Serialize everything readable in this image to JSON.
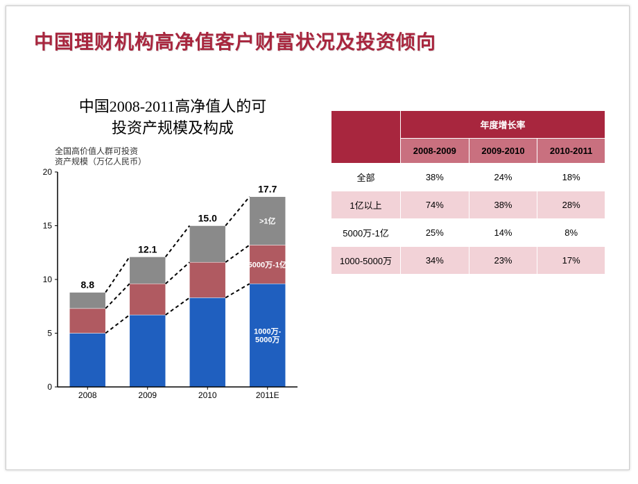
{
  "title": "中国理财机构高净值客户财富状况及投资倾向",
  "title_color": "#a8263e",
  "chart": {
    "type": "stacked-bar",
    "title_line1": "中国2008-2011高净值人的可",
    "title_line2": "投资产规模及构成",
    "note": "全国高价值人群可投资资产规模（万亿人民币）",
    "categories": [
      "2008",
      "2009",
      "2010",
      "2011E"
    ],
    "totals": [
      "8.8",
      "12.1",
      "15.0",
      "17.7"
    ],
    "ylim": [
      0,
      20
    ],
    "yticks": [
      0,
      5,
      10,
      15,
      20
    ],
    "series": [
      {
        "name": "1000万-5000万",
        "label": "1000万-\n5000万",
        "color": "#1f5fbf",
        "values": [
          5.0,
          6.7,
          8.3,
          9.6
        ]
      },
      {
        "name": "5000万-1亿",
        "label": "5000万-1亿",
        "color": "#b05a61",
        "values": [
          2.3,
          2.9,
          3.3,
          3.6
        ]
      },
      {
        "name": ">1亿",
        "label": ">1亿",
        "color": "#8a8a8a",
        "values": [
          1.5,
          2.5,
          3.4,
          4.5
        ]
      }
    ],
    "bar_width": 0.6,
    "axis_color": "#000000",
    "tick_color": "#666666",
    "connector_dash": "5,4",
    "label_fontsize": 12,
    "total_fontsize": 14,
    "plot_bg": "#ffffff"
  },
  "table": {
    "header_main": "年度增长率",
    "header_cols": [
      "2008-2009",
      "2009-2010",
      "2010-2011"
    ],
    "rows": [
      {
        "label": "全部",
        "cells": [
          "38%",
          "24%",
          "18%"
        ],
        "shade": "even"
      },
      {
        "label": "1亿以上",
        "cells": [
          "74%",
          "38%",
          "28%"
        ],
        "shade": "odd"
      },
      {
        "label": "5000万-1亿",
        "cells": [
          "25%",
          "14%",
          "8%"
        ],
        "shade": "even"
      },
      {
        "label": "1000-5000万",
        "cells": [
          "34%",
          "23%",
          "17%"
        ],
        "shade": "odd"
      }
    ],
    "header_bg": "#a8263e",
    "subheader_bg": "#c9707f",
    "row_even_bg": "#ffffff",
    "row_odd_bg": "#f2d2d7",
    "border_color": "#ffffff",
    "fontsize": 13
  }
}
